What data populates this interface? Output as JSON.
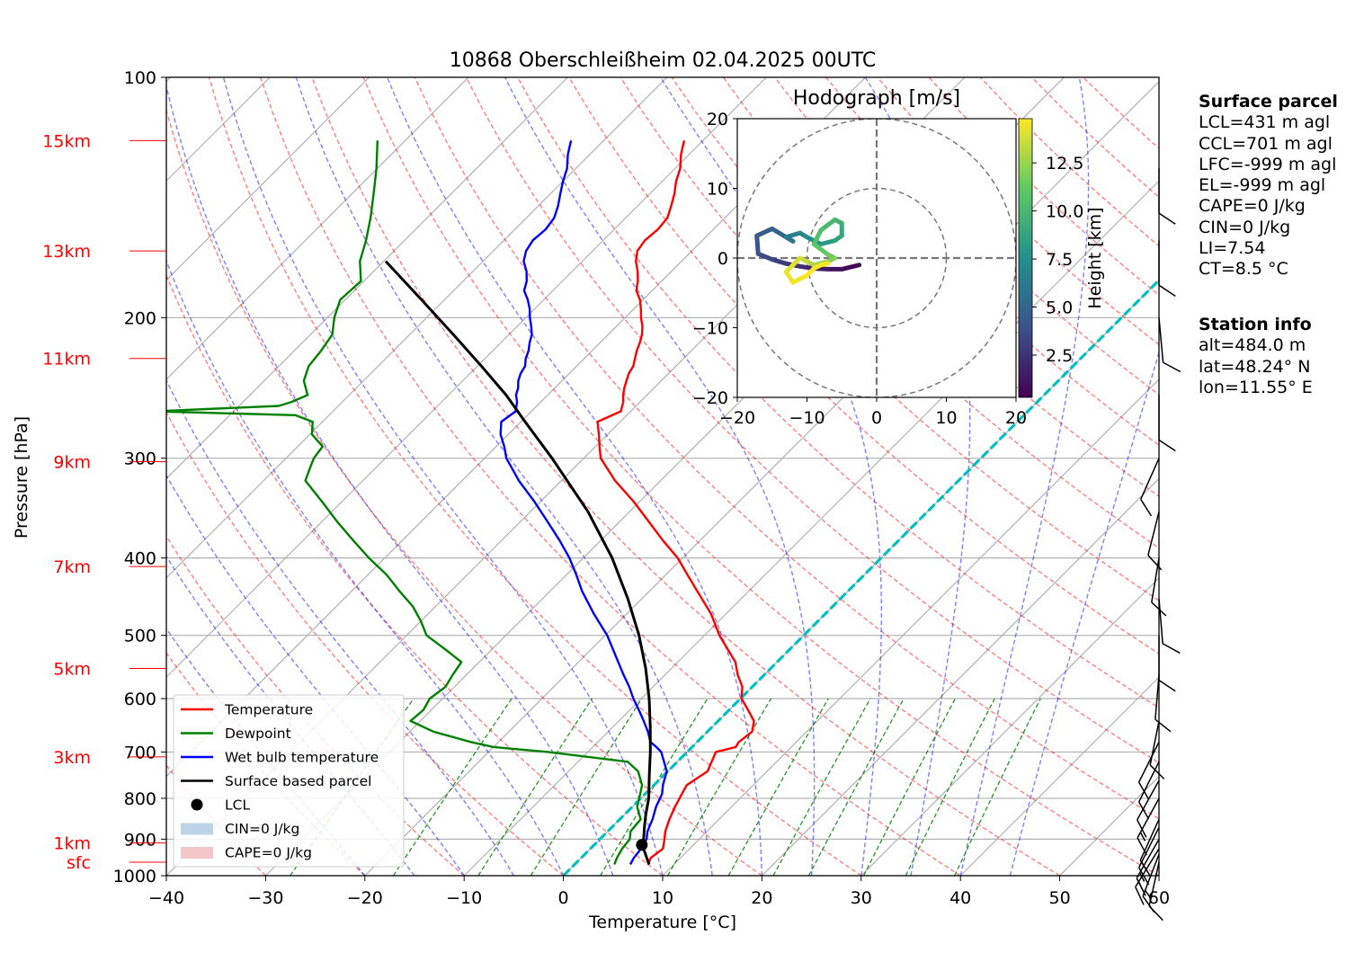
{
  "title": "10868 Oberschleißheim 02.04.2025 00UTC",
  "xlabel": "Temperature [°C]",
  "ylabel": "Pressure [hPa]",
  "xticks": [
    "−40",
    "−30",
    "−20",
    "−10",
    "0",
    "10",
    "20",
    "30",
    "40",
    "50",
    "60"
  ],
  "yticks": [
    "100",
    "200",
    "300",
    "400",
    "500",
    "600",
    "700",
    "800",
    "900",
    "1000"
  ],
  "km_labels": [
    {
      "label": "15km",
      "p": 120
    },
    {
      "label": "13km",
      "p": 165
    },
    {
      "label": "11km",
      "p": 225
    },
    {
      "label": "9km",
      "p": 303
    },
    {
      "label": "7km",
      "p": 410
    },
    {
      "label": "5km",
      "p": 550
    },
    {
      "label": "3km",
      "p": 710
    },
    {
      "label": "1km",
      "p": 910
    },
    {
      "label": "sfc",
      "p": 962
    }
  ],
  "legend": [
    {
      "label": "Temperature",
      "color": "#ff0000",
      "kind": "line"
    },
    {
      "label": "Dewpoint",
      "color": "#008000",
      "kind": "line"
    },
    {
      "label": "Wet bulb temperature",
      "color": "#0000ff",
      "kind": "line"
    },
    {
      "label": "Surface based parcel",
      "color": "#000000",
      "kind": "line"
    },
    {
      "label": "LCL",
      "color": "#000000",
      "kind": "dot"
    },
    {
      "label": "CIN=0 J/kg",
      "color": "#bcd3e6",
      "kind": "patch"
    },
    {
      "label": "CAPE=0 J/kg",
      "color": "#f3c6c8",
      "kind": "patch"
    }
  ],
  "hodograph": {
    "title": "Hodograph [m/s]",
    "ticks": [
      "−20",
      "−10",
      "0",
      "10",
      "20"
    ],
    "colorbar_label": "Height [km]",
    "colorbar_ticks": [
      "2.5",
      "5.0",
      "7.5",
      "10.0",
      "12.5"
    ]
  },
  "surface_parcel": {
    "header": "Surface parcel",
    "lines": [
      "LCL=431 m agl",
      "CCL=701 m agl",
      "LFC=-999 m agl",
      "EL=-999 m agl",
      "CAPE=0 J/kg",
      "CIN=0 J/kg",
      "LI=7.54",
      "CT=8.5 °C"
    ]
  },
  "station_info": {
    "header": "Station info",
    "lines": [
      "alt=484.0 m",
      "lat=48.24° N",
      "lon=11.55° E"
    ]
  },
  "colors": {
    "temperature": "#ff0000",
    "dewpoint": "#008000",
    "wetbulb": "#0000ff",
    "parcel": "#000000",
    "zero_isotherm": "#00bfbf",
    "dry_adiabat": "#ff0000",
    "moist_adiabat": "#0000ff",
    "mixing_ratio": "#008000",
    "isotherm": "#808080"
  },
  "chart_data": {
    "type": "line",
    "skew_degrees": 45,
    "xlim": [
      -40,
      60
    ],
    "ylim": [
      1000,
      100
    ],
    "y_scale": "log",
    "grid": true,
    "legend_position": "lower-left",
    "series": [
      {
        "name": "Temperature",
        "p": [
          968,
          950,
          925,
          900,
          880,
          850,
          820,
          790,
          770,
          740,
          700,
          690,
          680,
          660,
          640,
          620,
          600,
          580,
          560,
          540,
          500,
          470,
          440,
          420,
          400,
          380,
          360,
          340,
          320,
          300,
          290,
          280,
          270,
          262,
          255,
          250,
          245,
          240,
          235,
          230,
          225,
          220,
          215,
          210,
          205,
          200,
          195,
          190,
          185,
          180,
          175,
          170,
          165,
          160,
          155,
          150,
          145,
          140,
          135,
          130,
          125,
          120
        ],
        "t": [
          7.4,
          7.0,
          7.3,
          6.5,
          5.8,
          5.0,
          4.3,
          3.7,
          3.3,
          4.0,
          2.9,
          4.4,
          4.2,
          4.5,
          3.6,
          1.9,
          0.1,
          -1.0,
          -2.7,
          -4.2,
          -8.5,
          -11.5,
          -15.2,
          -17.8,
          -20.5,
          -23.8,
          -27.1,
          -30.6,
          -34.6,
          -38.3,
          -39.6,
          -40.9,
          -42.3,
          -41.0,
          -41.7,
          -42.4,
          -43.0,
          -43.5,
          -44.0,
          -44.3,
          -44.9,
          -45.5,
          -46.0,
          -46.6,
          -47.4,
          -48.4,
          -49.3,
          -50.3,
          -51.6,
          -52.4,
          -53.4,
          -54.6,
          -55.5,
          -55.8,
          -55.6,
          -55.8,
          -56.6,
          -57.5,
          -58.6,
          -59.5,
          -60.8,
          -61.9
        ]
      },
      {
        "name": "Dewpoint",
        "p": [
          968,
          950,
          925,
          900,
          880,
          850,
          820,
          790,
          770,
          740,
          720,
          700,
          690,
          680,
          660,
          640,
          620,
          600,
          580,
          560,
          540,
          520,
          500,
          480,
          460,
          440,
          420,
          400,
          380,
          360,
          340,
          320,
          310,
          300,
          290,
          280,
          270,
          265,
          262,
          258,
          255,
          250,
          240,
          230,
          220,
          210,
          200,
          190,
          180,
          170,
          160,
          150,
          140,
          130,
          120
        ],
        "t": [
          4.0,
          3.6,
          3.2,
          3.0,
          2.3,
          2.1,
          0.5,
          -0.5,
          -1.2,
          -3.0,
          -5.0,
          -14.0,
          -20.0,
          -22.8,
          -27.6,
          -31.0,
          -30.8,
          -31.3,
          -30.9,
          -31.4,
          -31.8,
          -34.8,
          -38.0,
          -40.0,
          -42.3,
          -45.2,
          -48.1,
          -51.6,
          -55.0,
          -58.5,
          -62.0,
          -65.8,
          -66.5,
          -67.2,
          -67.5,
          -69.8,
          -71.0,
          -73.4,
          -88.0,
          -76.0,
          -75.1,
          -74.2,
          -76.0,
          -77.0,
          -77.3,
          -77.8,
          -79.3,
          -80.5,
          -80.3,
          -82.4,
          -83.9,
          -85.7,
          -87.8,
          -90.1,
          -92.8
        ]
      },
      {
        "name": "Wet bulb temperature",
        "p": [
          968,
          950,
          925,
          900,
          880,
          850,
          820,
          790,
          770,
          740,
          700,
          690,
          680,
          660,
          640,
          620,
          600,
          580,
          560,
          540,
          500,
          470,
          440,
          420,
          400,
          380,
          360,
          340,
          320,
          300,
          290,
          280,
          270,
          262,
          255,
          250,
          245,
          240,
          235,
          230,
          225,
          220,
          215,
          210,
          205,
          200,
          195,
          190,
          185,
          180,
          175,
          170,
          165,
          160,
          155,
          150,
          145,
          140,
          135,
          130,
          125,
          120
        ],
        "t": [
          5.6,
          5.3,
          5.1,
          4.7,
          4.0,
          3.3,
          2.4,
          1.7,
          0.9,
          -0.1,
          -2.6,
          -3.6,
          -4.7,
          -6.0,
          -7.5,
          -9.1,
          -10.8,
          -12.4,
          -14.2,
          -16.0,
          -19.8,
          -23.3,
          -26.8,
          -29.0,
          -31.4,
          -34.2,
          -37.3,
          -40.6,
          -44.3,
          -47.8,
          -49.2,
          -50.8,
          -52.0,
          -51.6,
          -52.4,
          -53.2,
          -53.7,
          -54.4,
          -54.9,
          -55.2,
          -55.9,
          -56.4,
          -57.1,
          -57.7,
          -58.6,
          -59.6,
          -60.5,
          -61.6,
          -62.9,
          -63.6,
          -64.6,
          -65.9,
          -66.7,
          -67.1,
          -66.9,
          -67.2,
          -68.0,
          -69.0,
          -70.0,
          -70.9,
          -72.2,
          -73.3
        ]
      },
      {
        "name": "Surface based parcel",
        "p": [
          968,
          930,
          915,
          900,
          870,
          840,
          800,
          750,
          700,
          650,
          600,
          550,
          500,
          450,
          400,
          350,
          300,
          270,
          250,
          230,
          210,
          190,
          170
        ],
        "t": [
          7.5,
          5.6,
          4.8,
          4.4,
          3.3,
          2.2,
          0.8,
          -1.4,
          -3.7,
          -6.3,
          -9.2,
          -12.6,
          -16.6,
          -21.4,
          -27.1,
          -34.2,
          -43.2,
          -49.6,
          -54.2,
          -59.6,
          -65.6,
          -72.3,
          -79.8
        ]
      }
    ],
    "lcl": {
      "p": 915,
      "t": 4.8
    },
    "zero_isotherm": 0,
    "wind_barbs": [
      {
        "p": 962,
        "u": 2,
        "v": 9
      },
      {
        "p": 940,
        "u": 5,
        "v": 13
      },
      {
        "p": 925,
        "u": 8,
        "v": 13
      },
      {
        "p": 900,
        "u": 8,
        "v": 14
      },
      {
        "p": 870,
        "u": 6,
        "v": 12
      },
      {
        "p": 850,
        "u": 5,
        "v": 11
      },
      {
        "p": 800,
        "u": 6,
        "v": 11
      },
      {
        "p": 760,
        "u": 5,
        "v": 9
      },
      {
        "p": 720,
        "u": 4,
        "v": 8
      },
      {
        "p": 680,
        "u": 4,
        "v": 8
      },
      {
        "p": 640,
        "u": 2,
        "v": 10
      },
      {
        "p": 560,
        "u": 1,
        "v": 12
      },
      {
        "p": 500,
        "u": 0,
        "v": 10
      },
      {
        "p": 450,
        "u": -1,
        "v": 12
      },
      {
        "p": 400,
        "u": 2,
        "v": 12
      },
      {
        "p": 350,
        "u": 3,
        "v": 12
      },
      {
        "p": 300,
        "u": 4,
        "v": 9
      },
      {
        "p": 250,
        "u": 0,
        "v": 12
      },
      {
        "p": 200,
        "u": -1,
        "v": 11
      },
      {
        "p": 160,
        "u": 0,
        "v": 12
      },
      {
        "p": 130,
        "u": 0,
        "v": 12
      }
    ],
    "hodograph_trace": {
      "xlim": [
        -20,
        20
      ],
      "ylim": [
        -20,
        20
      ],
      "u": [
        -2.5,
        -5,
        -7,
        -9,
        -11,
        -13,
        -15,
        -17,
        -17.2,
        -15,
        -13,
        -12,
        -13,
        -11,
        -10,
        -8,
        -6,
        -5,
        -5,
        -6,
        -8,
        -9,
        -7,
        -6,
        -7,
        -9,
        -10,
        -11,
        -12,
        -13,
        -12,
        -10,
        -9,
        -8,
        -7
      ],
      "v": [
        -1,
        -1.6,
        -1.6,
        -1.5,
        -1.2,
        -0.8,
        -0.2,
        0.6,
        3.2,
        4.2,
        3.0,
        2.4,
        3.0,
        3.6,
        3.0,
        2.0,
        2.5,
        3.2,
        5.0,
        5.5,
        4.0,
        2.0,
        0.5,
        0.0,
        -0.5,
        -1.0,
        -0.5,
        0.0,
        -1.0,
        -2.0,
        -3.5,
        -2.5,
        -1.5,
        -1.0,
        -0.8
      ],
      "height_km": [
        0.5,
        1.0,
        1.5,
        2.0,
        2.5,
        3.0,
        3.5,
        4.0,
        4.5,
        5.0,
        5.5,
        6.0,
        6.5,
        7.0,
        7.5,
        8.0,
        8.5,
        9.0,
        9.5,
        10.0,
        10.5,
        11.0,
        11.5,
        12.0,
        12.5,
        13.0,
        13.5,
        14.0,
        14.2,
        14.4,
        14.6,
        14.8,
        15.0,
        15.1,
        15.2
      ]
    }
  }
}
